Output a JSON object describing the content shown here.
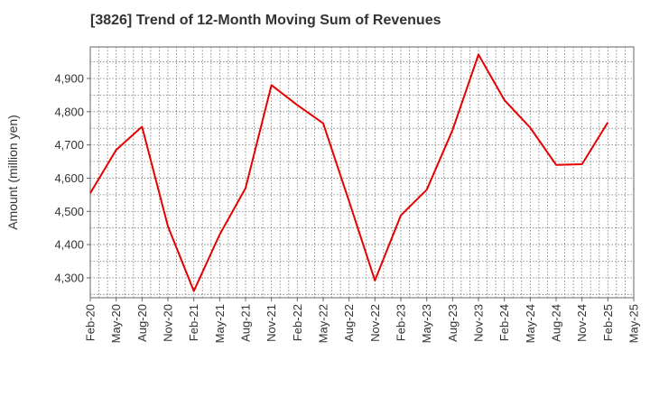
{
  "chart_data": {
    "type": "line",
    "title": "[3826]  Trend of 12-Month Moving Sum of Revenues",
    "xlabel": "",
    "ylabel": "Amount (million yen)",
    "ylim": [
      4240,
      4995
    ],
    "yticks": [
      4300,
      4400,
      4500,
      4600,
      4700,
      4800,
      4900
    ],
    "ytick_labels": [
      "4,300",
      "4,400",
      "4,500",
      "4,600",
      "4,700",
      "4,800",
      "4,900"
    ],
    "x_tick_labels": [
      "Feb-20",
      "May-20",
      "Aug-20",
      "Nov-20",
      "Feb-21",
      "May-21",
      "Aug-21",
      "Nov-21",
      "Feb-22",
      "May-22",
      "Aug-22",
      "Nov-22",
      "Feb-23",
      "May-23",
      "Aug-23",
      "Nov-23",
      "Feb-24",
      "May-24",
      "Aug-24",
      "Nov-24",
      "Feb-25",
      "May-25"
    ],
    "grid": true,
    "series": [
      {
        "color": "#e60000",
        "values": [
          4555,
          4685,
          4755,
          4455,
          4260,
          4430,
          4570,
          4880,
          4820,
          4765,
          4530,
          4292,
          4488,
          4565,
          4745,
          4972,
          4835,
          4752,
          4640,
          4642,
          4768
        ]
      }
    ]
  }
}
